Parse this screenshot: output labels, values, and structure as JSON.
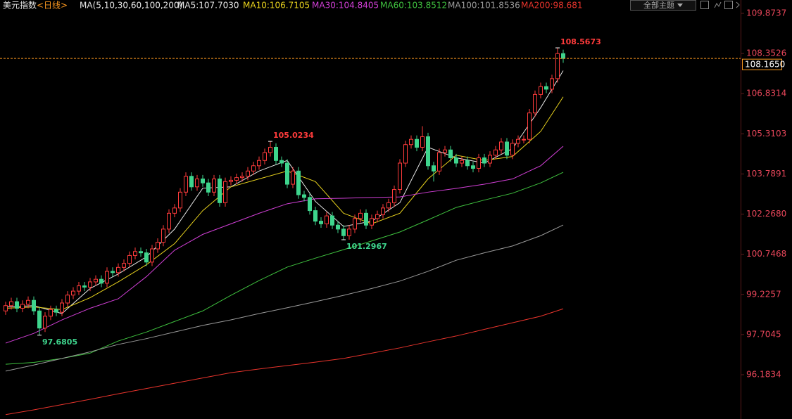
{
  "chart_data": {
    "type": "candlestick",
    "title": "美元指数",
    "period": "<日线>",
    "ma_label": "MA(5,10,30,60,100,200)",
    "theme_button": "全部主题",
    "up_color": "#ff3b3b",
    "down_color": "#3ed58d",
    "candles": {
      "open": [
        98.6,
        98.8,
        98.95,
        98.7,
        98.85,
        99.0,
        98.6,
        97.95,
        98.4,
        98.65,
        98.55,
        98.9,
        99.2,
        99.35,
        99.55,
        99.5,
        99.7,
        99.8,
        99.65,
        100.1,
        100.05,
        100.25,
        100.4,
        100.7,
        100.85,
        100.8,
        100.45,
        100.95,
        101.2,
        101.7,
        102.3,
        102.5,
        103.1,
        103.7,
        103.3,
        103.6,
        103.45,
        103.1,
        103.6,
        102.7,
        103.5,
        103.55,
        103.65,
        103.7,
        103.9,
        104.1,
        104.3,
        104.6,
        104.8,
        104.3,
        104.2,
        103.4,
        103.9,
        103.0,
        102.9,
        102.4,
        102.0,
        101.9,
        102.2,
        101.85,
        101.7,
        101.45,
        101.7,
        102.1,
        102.3,
        101.85,
        102.1,
        102.25,
        102.5,
        102.7,
        103.2,
        104.2,
        104.9,
        105.1,
        104.8,
        105.2,
        104.1,
        103.9,
        104.6,
        104.7,
        104.4,
        104.2,
        104.3,
        104.1,
        104.0,
        104.4,
        104.2,
        104.5,
        104.7,
        105.0,
        104.5,
        104.95,
        105.1,
        105.1,
        106.1,
        106.8,
        107.1,
        107.0,
        107.4,
        108.35
      ],
      "high": [
        98.95,
        99.1,
        99.1,
        99.0,
        99.15,
        99.15,
        98.75,
        98.55,
        98.8,
        98.8,
        99.05,
        99.35,
        99.5,
        99.7,
        99.7,
        99.85,
        99.95,
        99.95,
        100.25,
        100.25,
        100.4,
        100.55,
        100.85,
        101.0,
        101.0,
        100.95,
        101.1,
        101.35,
        101.85,
        102.45,
        102.65,
        103.25,
        103.85,
        103.85,
        103.75,
        103.75,
        103.6,
        103.75,
        103.75,
        103.65,
        103.7,
        103.8,
        103.85,
        104.05,
        104.25,
        104.45,
        104.75,
        105.0234,
        104.95,
        104.45,
        104.35,
        104.05,
        104.05,
        103.15,
        103.05,
        102.55,
        102.15,
        102.35,
        102.35,
        102.0,
        101.85,
        101.85,
        102.25,
        102.45,
        102.45,
        102.25,
        102.4,
        102.65,
        102.85,
        103.35,
        104.35,
        105.05,
        105.25,
        105.25,
        105.6,
        105.35,
        104.25,
        104.75,
        104.85,
        104.85,
        104.55,
        104.45,
        104.45,
        104.25,
        104.55,
        104.55,
        104.65,
        104.85,
        105.15,
        105.15,
        105.1,
        105.25,
        105.25,
        106.25,
        106.95,
        107.25,
        107.25,
        107.55,
        108.5673,
        108.5
      ],
      "low": [
        98.45,
        98.65,
        98.55,
        98.55,
        98.7,
        98.45,
        97.6805,
        97.8,
        98.25,
        98.4,
        98.4,
        98.75,
        99.05,
        99.2,
        99.35,
        99.35,
        99.55,
        99.5,
        99.5,
        99.9,
        99.9,
        100.1,
        100.25,
        100.55,
        100.65,
        100.3,
        100.3,
        100.8,
        101.05,
        101.55,
        102.15,
        102.35,
        102.95,
        103.15,
        103.15,
        103.3,
        102.95,
        102.95,
        102.55,
        102.55,
        103.35,
        103.4,
        103.5,
        103.55,
        103.75,
        103.95,
        104.15,
        104.45,
        104.15,
        104.05,
        103.25,
        103.25,
        102.85,
        102.75,
        102.25,
        101.85,
        101.75,
        101.75,
        101.7,
        101.55,
        101.2967,
        101.3,
        101.55,
        101.95,
        101.7,
        101.7,
        101.95,
        102.1,
        102.35,
        102.55,
        103.05,
        104.05,
        104.75,
        104.65,
        104.65,
        103.95,
        103.5,
        103.75,
        104.45,
        104.25,
        104.05,
        104.05,
        103.95,
        103.85,
        103.85,
        104.05,
        104.05,
        104.35,
        104.55,
        104.35,
        104.35,
        104.8,
        104.95,
        104.95,
        105.95,
        106.65,
        106.85,
        106.85,
        107.25,
        108.0
      ],
      "close": [
        98.8,
        98.95,
        98.7,
        98.85,
        99.0,
        98.6,
        97.95,
        98.4,
        98.65,
        98.55,
        98.9,
        99.2,
        99.35,
        99.55,
        99.5,
        99.7,
        99.8,
        99.65,
        100.1,
        100.05,
        100.25,
        100.4,
        100.7,
        100.85,
        100.8,
        100.45,
        100.95,
        101.2,
        101.7,
        102.3,
        102.5,
        103.1,
        103.7,
        103.3,
        103.6,
        103.45,
        103.1,
        103.6,
        102.7,
        103.5,
        103.55,
        103.65,
        103.7,
        103.9,
        104.1,
        104.3,
        104.6,
        104.8,
        104.3,
        104.2,
        103.4,
        103.9,
        103.0,
        102.9,
        102.4,
        102.0,
        101.9,
        102.2,
        101.85,
        101.7,
        101.45,
        101.7,
        102.1,
        102.3,
        101.85,
        102.1,
        102.25,
        102.5,
        102.7,
        103.2,
        104.2,
        104.9,
        105.1,
        104.8,
        105.2,
        104.1,
        103.9,
        104.6,
        104.7,
        104.4,
        104.2,
        104.3,
        104.1,
        104.0,
        104.4,
        104.2,
        104.5,
        104.7,
        105.0,
        104.5,
        104.95,
        105.1,
        105.1,
        106.1,
        106.8,
        107.1,
        107.0,
        107.4,
        108.35,
        108.165
      ]
    },
    "series": [
      {
        "name": "MA5:107.7030",
        "color": "#e6e6e6",
        "x": [
          0,
          5,
          10,
          15,
          20,
          25,
          30,
          35,
          40,
          45,
          50,
          55,
          60,
          65,
          70,
          75,
          80,
          85,
          90,
          95,
          99
        ],
        "values": [
          98.75,
          98.8,
          98.5,
          99.45,
          100.0,
          100.65,
          101.7,
          103.25,
          103.3,
          103.9,
          104.3,
          102.75,
          101.8,
          102.0,
          102.7,
          104.8,
          104.4,
          104.2,
          104.75,
          106.3,
          107.703
        ]
      },
      {
        "name": "MA10:106.7105",
        "color": "#e8d21d",
        "x": [
          0,
          5,
          10,
          15,
          20,
          25,
          30,
          35,
          40,
          45,
          50,
          55,
          60,
          65,
          70,
          75,
          80,
          85,
          90,
          95,
          99
        ],
        "values": [
          98.7,
          98.75,
          98.65,
          99.1,
          99.7,
          100.35,
          101.15,
          102.4,
          103.3,
          103.6,
          103.9,
          103.5,
          102.3,
          101.9,
          102.3,
          103.6,
          104.5,
          104.3,
          104.45,
          105.4,
          106.7105
        ]
      },
      {
        "name": "MA30:104.8405",
        "color": "#d13fd6",
        "x": [
          0,
          5,
          10,
          15,
          20,
          25,
          30,
          35,
          40,
          45,
          50,
          55,
          60,
          65,
          70,
          75,
          80,
          85,
          90,
          95,
          99
        ],
        "values": [
          97.38,
          97.75,
          98.26,
          98.7,
          99.06,
          99.9,
          100.9,
          101.5,
          101.9,
          102.3,
          102.66,
          102.85,
          102.87,
          102.9,
          102.92,
          103.1,
          103.24,
          103.4,
          103.6,
          104.1,
          104.8405
        ]
      },
      {
        "name": "MA60:103.8512",
        "color": "#3fc23f",
        "x": [
          0,
          5,
          10,
          15,
          20,
          25,
          30,
          35,
          40,
          45,
          50,
          55,
          60,
          65,
          70,
          75,
          80,
          85,
          90,
          95,
          99
        ],
        "values": [
          96.58,
          96.65,
          96.8,
          97.0,
          97.46,
          97.8,
          98.2,
          98.6,
          99.19,
          99.75,
          100.26,
          100.6,
          100.92,
          101.25,
          101.59,
          102.05,
          102.52,
          102.8,
          103.06,
          103.45,
          103.8512
        ]
      },
      {
        "name": "MA100:101.8536",
        "color": "#9a9a9a",
        "x": [
          0,
          5,
          10,
          15,
          20,
          25,
          30,
          35,
          40,
          45,
          50,
          55,
          60,
          65,
          70,
          75,
          80,
          85,
          90,
          95,
          99
        ],
        "values": [
          96.32,
          96.55,
          96.8,
          97.05,
          97.33,
          97.55,
          97.8,
          98.05,
          98.26,
          98.5,
          98.72,
          98.95,
          99.19,
          99.45,
          99.73,
          100.1,
          100.52,
          100.8,
          101.06,
          101.45,
          101.8536
        ]
      },
      {
        "name": "MA200:98.681",
        "color": "#e8342c",
        "x": [
          0,
          5,
          10,
          15,
          20,
          25,
          30,
          35,
          40,
          45,
          50,
          55,
          60,
          65,
          70,
          75,
          80,
          85,
          90,
          95,
          99
        ],
        "values": [
          94.67,
          94.85,
          95.05,
          95.25,
          95.46,
          95.66,
          95.86,
          96.06,
          96.26,
          96.4,
          96.53,
          96.66,
          96.8,
          97.0,
          97.2,
          97.43,
          97.65,
          97.9,
          98.15,
          98.4,
          98.681
        ]
      }
    ],
    "annotations": [
      {
        "label": "108.5673",
        "value": 108.5673
      },
      {
        "label": "105.0234",
        "value": 105.0234
      },
      {
        "label": "101.2967",
        "value": 101.2967
      },
      {
        "label": "97.6805",
        "value": 97.6805
      }
    ],
    "current_price": {
      "value": 108.165,
      "label": "108.1650"
    },
    "current_color": "#ff9a1f",
    "ylim": [
      94.505,
      110.3798
    ],
    "yticks": [
      109.8737,
      108.3526,
      106.8314,
      105.3103,
      103.7891,
      {
        "value": 102.268,
        "label": "102.2680"
      },
      100.7468,
      99.2257,
      97.7045,
      96.1834
    ],
    "ytick_color": "#e8465a"
  }
}
